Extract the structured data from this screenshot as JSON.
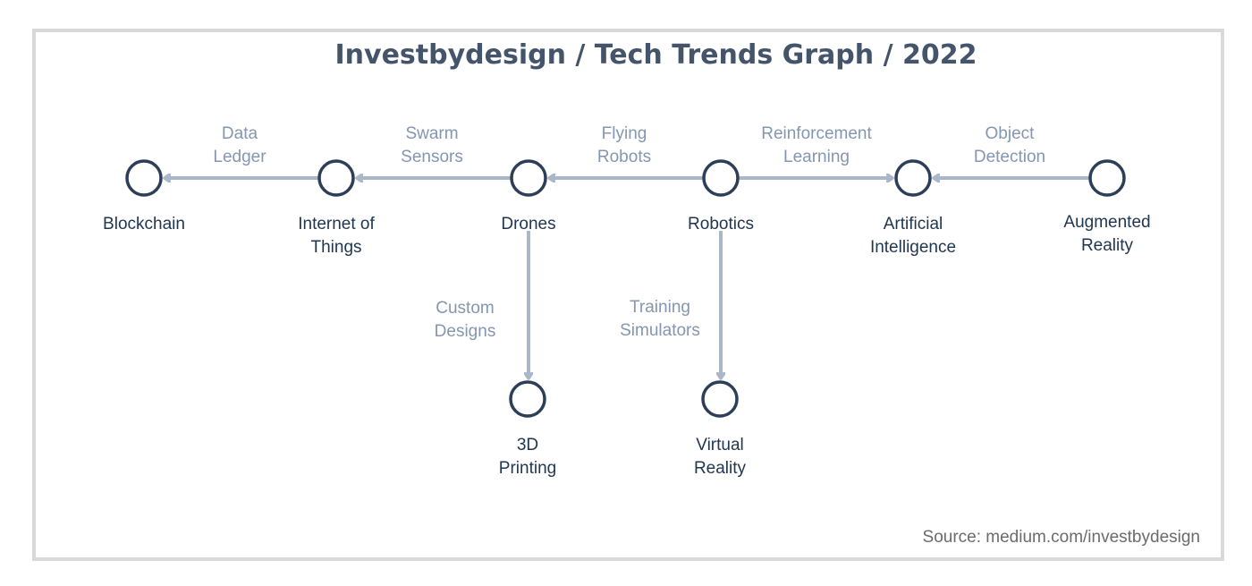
{
  "title": "Investbydesign / Tech Trends Graph / 2022",
  "source": "Source: medium.com/investbydesign",
  "colors": {
    "title": "#44546a",
    "node_stroke": "#2c3e58",
    "node_label": "#1f3550",
    "edge": "#a9b7c9",
    "edge_label": "#8496b0",
    "frame": "#d9d9d9"
  },
  "nodes": [
    {
      "id": "blockchain",
      "lines": [
        "Blockchain"
      ]
    },
    {
      "id": "iot",
      "lines": [
        "Internet of",
        "Things"
      ]
    },
    {
      "id": "drones",
      "lines": [
        "Drones"
      ]
    },
    {
      "id": "robotics",
      "lines": [
        "Robotics"
      ]
    },
    {
      "id": "ai",
      "lines": [
        "Artificial",
        "Intelligence"
      ]
    },
    {
      "id": "ar",
      "lines": [
        "Augmented",
        "Reality"
      ]
    },
    {
      "id": "printing",
      "lines": [
        "3D",
        "Printing"
      ]
    },
    {
      "id": "vr",
      "lines": [
        "Virtual",
        "Reality"
      ]
    }
  ],
  "edges": [
    {
      "from": "iot",
      "to": "blockchain",
      "lines": [
        "Data",
        "Ledger"
      ]
    },
    {
      "from": "drones",
      "to": "iot",
      "lines": [
        "Swarm",
        "Sensors"
      ]
    },
    {
      "from": "robotics",
      "to": "drones",
      "lines": [
        "Flying",
        "Robots"
      ]
    },
    {
      "from": "robotics",
      "to": "ai",
      "lines": [
        "Reinforcement",
        "Learning"
      ]
    },
    {
      "from": "ar",
      "to": "ai",
      "lines": [
        "Object",
        "Detection"
      ]
    },
    {
      "from": "drones",
      "to": "printing",
      "lines": [
        "Custom",
        "Designs"
      ]
    },
    {
      "from": "robotics",
      "to": "vr",
      "lines": [
        "Training",
        "Simulators"
      ]
    }
  ]
}
